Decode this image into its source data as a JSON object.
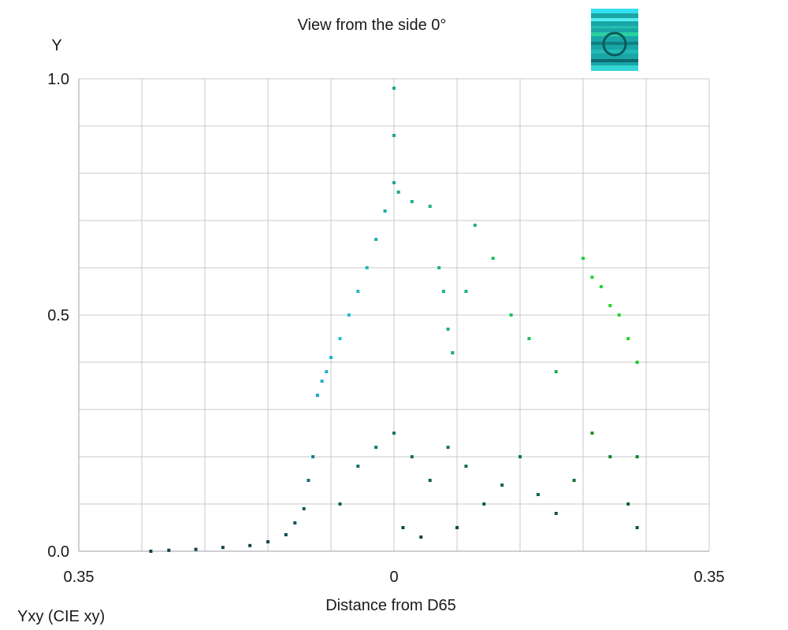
{
  "chart_data": {
    "type": "scatter",
    "title": "View from the side 0°",
    "ylabel": "Y",
    "xlabel": "Distance from D65",
    "footer": "Yxy (CIE xy)",
    "xlim": [
      -0.35,
      0.35
    ],
    "ylim": [
      0,
      1.0
    ],
    "x_tick_labels": [
      "0.35",
      "0",
      "0.35"
    ],
    "x_tick_values": [
      -0.35,
      0,
      0.35
    ],
    "y_tick_labels": [
      "1.0",
      "0.5",
      "0.0"
    ],
    "y_tick_values": [
      1.0,
      0.5,
      0.0
    ],
    "grid": true,
    "point_colors": {
      "cyan": "#22ccee",
      "teal": "#1aa89a",
      "green": "#22dd22",
      "dark": "#0a2a24"
    },
    "series": [
      {
        "values": [
          [
            -0.27,
            0.0
          ],
          [
            -0.25,
            0.002
          ],
          [
            -0.22,
            0.004
          ],
          [
            -0.19,
            0.008
          ],
          [
            -0.16,
            0.012
          ],
          [
            -0.14,
            0.02
          ],
          [
            -0.12,
            0.035
          ],
          [
            -0.11,
            0.06
          ],
          [
            -0.1,
            0.09
          ],
          [
            -0.095,
            0.15
          ],
          [
            -0.09,
            0.2
          ],
          [
            -0.085,
            0.33
          ],
          [
            -0.08,
            0.36
          ],
          [
            -0.075,
            0.38
          ],
          [
            -0.07,
            0.41
          ],
          [
            -0.06,
            0.45
          ],
          [
            -0.05,
            0.5
          ],
          [
            -0.04,
            0.55
          ],
          [
            -0.03,
            0.6
          ],
          [
            -0.02,
            0.66
          ],
          [
            -0.01,
            0.72
          ],
          [
            0.0,
            0.78
          ],
          [
            0.0,
            0.88
          ],
          [
            0.0,
            0.98
          ],
          [
            0.005,
            0.76
          ],
          [
            0.02,
            0.74
          ],
          [
            0.04,
            0.73
          ],
          [
            0.05,
            0.6
          ],
          [
            0.055,
            0.55
          ],
          [
            0.06,
            0.47
          ],
          [
            0.065,
            0.42
          ],
          [
            0.08,
            0.55
          ],
          [
            0.09,
            0.69
          ],
          [
            0.11,
            0.62
          ],
          [
            0.13,
            0.5
          ],
          [
            0.15,
            0.45
          ],
          [
            0.18,
            0.38
          ],
          [
            0.21,
            0.62
          ],
          [
            0.22,
            0.58
          ],
          [
            0.23,
            0.56
          ],
          [
            0.24,
            0.52
          ],
          [
            0.25,
            0.5
          ],
          [
            0.26,
            0.45
          ],
          [
            0.27,
            0.4
          ],
          [
            0.27,
            0.2
          ],
          [
            0.27,
            0.05
          ],
          [
            -0.06,
            0.1
          ],
          [
            -0.04,
            0.18
          ],
          [
            -0.02,
            0.22
          ],
          [
            0.0,
            0.25
          ],
          [
            0.02,
            0.2
          ],
          [
            0.04,
            0.15
          ],
          [
            0.06,
            0.22
          ],
          [
            0.08,
            0.18
          ],
          [
            0.1,
            0.1
          ],
          [
            0.12,
            0.14
          ],
          [
            0.14,
            0.2
          ],
          [
            0.16,
            0.12
          ],
          [
            0.18,
            0.08
          ],
          [
            0.2,
            0.15
          ],
          [
            0.22,
            0.25
          ],
          [
            0.24,
            0.2
          ],
          [
            0.26,
            0.1
          ],
          [
            0.01,
            0.05
          ],
          [
            0.03,
            0.03
          ],
          [
            0.07,
            0.05
          ]
        ]
      }
    ]
  },
  "legend_thumbnail": {
    "icon": "color-cube-thumbnail-icon"
  }
}
